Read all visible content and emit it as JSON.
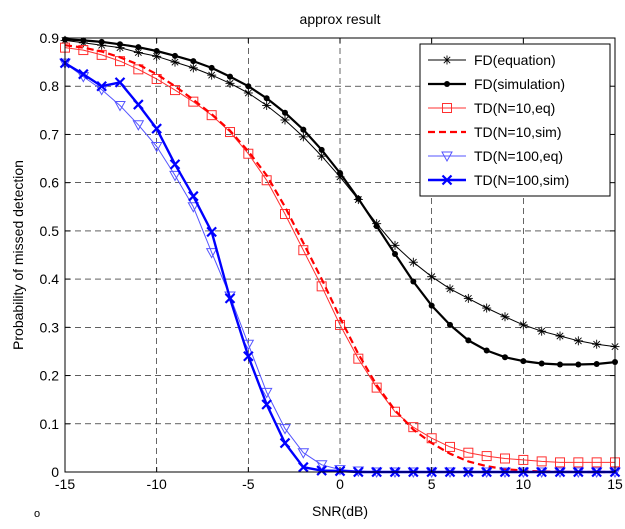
{
  "chart_data": {
    "type": "line",
    "title": "approx result",
    "xlabel": "SNR(dB)",
    "ylabel": "Probability of missed detection",
    "xlim": [
      -15,
      15
    ],
    "ylim": [
      0,
      0.9
    ],
    "xticks": [
      -15,
      -10,
      -5,
      0,
      5,
      10,
      15
    ],
    "yticks": [
      0,
      0.1,
      0.2,
      0.3,
      0.4,
      0.5,
      0.6,
      0.7,
      0.8,
      0.9
    ],
    "grid": true,
    "grid_style": "dashed",
    "legend_position": "top-right",
    "x": [
      -15,
      -14,
      -13,
      -12,
      -11,
      -10,
      -9,
      -8,
      -7,
      -6,
      -5,
      -4,
      -3,
      -2,
      -1,
      0,
      1,
      2,
      3,
      4,
      5,
      6,
      7,
      8,
      9,
      10,
      11,
      12,
      13,
      14,
      15
    ],
    "series": [
      {
        "name": "FD(equation)",
        "color": "#000000",
        "line": "solid",
        "marker": "asterisk",
        "width": 1,
        "values": [
          0.895,
          0.89,
          0.885,
          0.88,
          0.87,
          0.862,
          0.85,
          0.838,
          0.823,
          0.806,
          0.786,
          0.76,
          0.73,
          0.695,
          0.655,
          0.612,
          0.565,
          0.515,
          0.47,
          0.435,
          0.405,
          0.38,
          0.36,
          0.34,
          0.322,
          0.305,
          0.292,
          0.282,
          0.272,
          0.265,
          0.26
        ]
      },
      {
        "name": "FD(simulation)",
        "color": "#000000",
        "line": "solid",
        "marker": "dot",
        "width": 2.2,
        "values": [
          0.897,
          0.895,
          0.892,
          0.887,
          0.881,
          0.873,
          0.863,
          0.852,
          0.838,
          0.82,
          0.8,
          0.775,
          0.745,
          0.71,
          0.668,
          0.62,
          0.567,
          0.51,
          0.452,
          0.395,
          0.345,
          0.305,
          0.273,
          0.252,
          0.238,
          0.23,
          0.225,
          0.223,
          0.223,
          0.224,
          0.228
        ]
      },
      {
        "name": "TD(N=10,eq)",
        "color": "#ff3030",
        "line": "solid",
        "marker": "square",
        "width": 1,
        "values": [
          0.88,
          0.875,
          0.865,
          0.852,
          0.835,
          0.815,
          0.792,
          0.768,
          0.74,
          0.705,
          0.66,
          0.605,
          0.535,
          0.46,
          0.385,
          0.305,
          0.235,
          0.175,
          0.125,
          0.093,
          0.07,
          0.052,
          0.04,
          0.033,
          0.028,
          0.025,
          0.022,
          0.02,
          0.02,
          0.02,
          0.02
        ]
      },
      {
        "name": "TD(N=10,sim)",
        "color": "#ff0000",
        "line": "dashed",
        "marker": "none",
        "width": 2.2,
        "values": [
          0.885,
          0.88,
          0.872,
          0.86,
          0.845,
          0.825,
          0.8,
          0.772,
          0.742,
          0.708,
          0.665,
          0.615,
          0.55,
          0.475,
          0.4,
          0.32,
          0.245,
          0.18,
          0.128,
          0.088,
          0.06,
          0.038,
          0.022,
          0.012,
          0.006,
          0.003,
          0.001,
          0.0005,
          0,
          0,
          0
        ]
      },
      {
        "name": "TD(N=100,eq)",
        "color": "#5555ff",
        "line": "solid",
        "marker": "triangle-down",
        "width": 1,
        "values": [
          0.848,
          0.82,
          0.793,
          0.76,
          0.72,
          0.675,
          0.615,
          0.55,
          0.455,
          0.365,
          0.265,
          0.165,
          0.09,
          0.04,
          0.015,
          0.005,
          0.002,
          0,
          0,
          0,
          0,
          0,
          0,
          0,
          0,
          0,
          0,
          0,
          0,
          0,
          0
        ]
      },
      {
        "name": "TD(N=100,sim)",
        "color": "#0000ff",
        "line": "solid",
        "marker": "x",
        "width": 2.4,
        "values": [
          0.848,
          0.825,
          0.8,
          0.808,
          0.762,
          0.712,
          0.638,
          0.572,
          0.498,
          0.36,
          0.24,
          0.14,
          0.06,
          0.01,
          0.003,
          0.002,
          0,
          0,
          0,
          0,
          0,
          0,
          0,
          0,
          0,
          0,
          0,
          0,
          0,
          0,
          0
        ]
      }
    ]
  },
  "stray_text": "o"
}
